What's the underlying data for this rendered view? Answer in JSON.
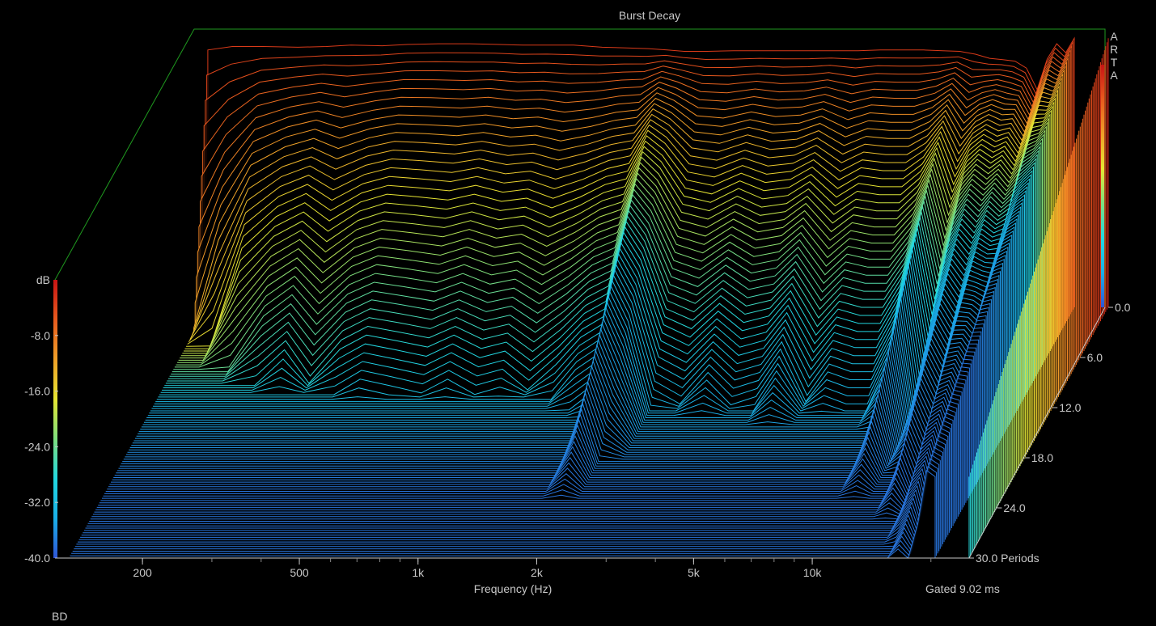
{
  "chart_data": {
    "type": "waterfall",
    "title": "Burst Decay",
    "xlabel": "Frequency (Hz)",
    "x_scale": "log",
    "xlim": [
      120,
      25000
    ],
    "x_ticks": [
      {
        "value": 200,
        "label": "200"
      },
      {
        "value": 500,
        "label": "500"
      },
      {
        "value": 1000,
        "label": "1k"
      },
      {
        "value": 2000,
        "label": "2k"
      },
      {
        "value": 5000,
        "label": "5k"
      },
      {
        "value": 10000,
        "label": "10k"
      }
    ],
    "zlabel": "dB",
    "zlim": [
      -40,
      0
    ],
    "z_ticks": [
      "-8.0",
      "-16.0",
      "-24.0",
      "-32.0",
      "-40.0"
    ],
    "depth_label": "Periods",
    "depth_range": [
      0,
      30
    ],
    "depth_ticks": [
      "0.0",
      "6.0",
      "12.0",
      "18.0",
      "24.0",
      "30.0 Periods"
    ],
    "brand_letters": [
      "A",
      "R",
      "T",
      "A"
    ],
    "footer_right": "Gated 9.02 ms",
    "footer_left": "BD",
    "colors": {
      "background": "#000000",
      "frame": "#1f9a1f",
      "text": "#c8c8c8",
      "floor": "#3a60d8",
      "colormap": [
        "#2f55d8",
        "#1ab0e8",
        "#22d8e0",
        "#7ee07e",
        "#e6e632",
        "#f0a028",
        "#e85a1e",
        "#c81414"
      ]
    },
    "profile": {
      "freq_hz": [
        130,
        150,
        180,
        220,
        260,
        300,
        360,
        420,
        500,
        600,
        700,
        820,
        950,
        1100,
        1300,
        1500,
        1700,
        1900,
        2100,
        2400,
        2800,
        3300,
        3800,
        4400,
        5000,
        5800,
        6600,
        7500,
        8500,
        9500,
        10500,
        11500,
        12500,
        13500,
        14500,
        15500,
        16500,
        17500,
        18500,
        19500,
        20500
      ],
      "initial_db": [
        -3,
        -2.5,
        -2.5,
        -2.6,
        -2.5,
        -2.3,
        -2.4,
        -2.2,
        -2.1,
        -2.1,
        -2.2,
        -2.3,
        -2.3,
        -2.3,
        -2.6,
        -2.7,
        -2.8,
        -3.0,
        -3.2,
        -3.2,
        -3.1,
        -3.1,
        -3.1,
        -3.1,
        -3.1,
        -3.1,
        -3.0,
        -3.0,
        -3.0,
        -3.1,
        -3.2,
        -3.6,
        -4.2,
        -4.4,
        -4.6,
        -5.6,
        -8.7,
        -4.3,
        -2.1,
        -3.4,
        -1.3
      ],
      "decay_db_per_period": [
        12.0,
        8.0,
        5.0,
        4.0,
        3.6,
        4.2,
        3.6,
        3.4,
        3.5,
        3.6,
        3.4,
        3.6,
        3.5,
        3.8,
        3.4,
        3.0,
        2.8,
        1.6,
        2.0,
        3.0,
        3.2,
        2.8,
        3.1,
        3.0,
        2.6,
        3.3,
        2.9,
        3.0,
        3.0,
        2.5,
        1.6,
        2.8,
        1.8,
        1.4,
        1.6,
        1.2,
        1.0,
        1.4,
        1.1,
        0.8,
        0.9
      ]
    }
  }
}
